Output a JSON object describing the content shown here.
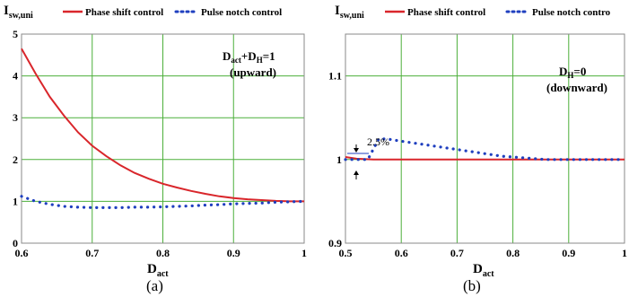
{
  "captions": {
    "a": "(a)",
    "b": "(b)"
  },
  "colors": {
    "phase_shift": "#d9262b",
    "pulse_notch": "#1f3fbf",
    "grid": "#4caf3a",
    "frame": "#8a8a8a",
    "bg": "#ffffff"
  },
  "chart_data": [
    {
      "type": "line",
      "panel": "a",
      "ylabel_main": "I",
      "ylabel_sub": "sw,uni",
      "xlabel_main": "D",
      "xlabel_sub": "act",
      "legend": {
        "phase": "Phase shift control",
        "pulse": "Pulse notch control",
        "placement": "top"
      },
      "annotation_line1": "D",
      "annotation_line1_sub1": "act",
      "annotation_line1_mid": "+D",
      "annotation_line1_sub2": "H",
      "annotation_line1_end": "=1",
      "annotation_line2": "(upward)",
      "xlim": [
        0.6,
        1.0
      ],
      "ylim": [
        0,
        5
      ],
      "xticks": [
        "0.6",
        "0.7",
        "0.8",
        "0.9",
        "1"
      ],
      "xtick_values": [
        0.6,
        0.7,
        0.8,
        0.9,
        1.0
      ],
      "yticks": [
        "0",
        "1",
        "2",
        "3",
        "4",
        "5"
      ],
      "ytick_values": [
        0,
        1,
        2,
        3,
        4,
        5
      ],
      "grid": true,
      "series": [
        {
          "name": "Phase shift control",
          "style": "solid",
          "x": [
            0.6,
            0.62,
            0.64,
            0.66,
            0.68,
            0.7,
            0.72,
            0.74,
            0.76,
            0.78,
            0.8,
            0.82,
            0.84,
            0.86,
            0.88,
            0.9,
            0.92,
            0.94,
            0.96,
            0.98,
            1.0
          ],
          "y": [
            4.65,
            4.05,
            3.5,
            3.05,
            2.65,
            2.33,
            2.08,
            1.86,
            1.68,
            1.54,
            1.42,
            1.33,
            1.25,
            1.18,
            1.12,
            1.08,
            1.05,
            1.03,
            1.01,
            1.0,
            1.0
          ]
        },
        {
          "name": "Pulse notch control",
          "style": "dotted",
          "x": [
            0.6,
            0.62,
            0.64,
            0.66,
            0.68,
            0.7,
            0.72,
            0.74,
            0.76,
            0.78,
            0.8,
            0.82,
            0.84,
            0.86,
            0.88,
            0.9,
            0.92,
            0.94,
            0.96,
            0.98,
            1.0
          ],
          "y": [
            1.12,
            1.0,
            0.93,
            0.88,
            0.86,
            0.85,
            0.85,
            0.85,
            0.86,
            0.86,
            0.87,
            0.88,
            0.89,
            0.91,
            0.92,
            0.94,
            0.95,
            0.96,
            0.98,
            0.99,
            1.0
          ]
        }
      ]
    },
    {
      "type": "line",
      "panel": "b",
      "ylabel_main": "I",
      "ylabel_sub": "sw,uni",
      "xlabel_main": "D",
      "xlabel_sub": "act",
      "legend": {
        "phase": "Phase shift control",
        "pulse": "Pulse notch contro",
        "placement": "top"
      },
      "annotation_line1": "D",
      "annotation_line1_sub": "H",
      "annotation_line1_end": "=0",
      "annotation_line2": "(downward)",
      "percent_label": "2.5%",
      "xlim": [
        0.5,
        1.0
      ],
      "ylim": [
        0.9,
        1.15
      ],
      "xticks": [
        "0.5",
        "0.6",
        "0.7",
        "0.8",
        "0.9",
        "1"
      ],
      "xtick_values": [
        0.5,
        0.6,
        0.7,
        0.8,
        0.9,
        1.0
      ],
      "yticks": [
        "0.9",
        "1",
        "1.1"
      ],
      "ytick_values": [
        0.9,
        1.0,
        1.1
      ],
      "grid": true,
      "series": [
        {
          "name": "Phase shift control",
          "style": "solid",
          "x": [
            0.5,
            0.52,
            0.55,
            0.6,
            0.65,
            0.7,
            0.75,
            0.8,
            0.85,
            0.9,
            0.95,
            1.0
          ],
          "y": [
            1.003,
            1.001,
            1.0,
            1.0,
            1.0,
            1.0,
            1.0,
            1.0,
            1.0,
            1.0,
            1.0,
            1.0
          ]
        },
        {
          "name": "Pulse notch control",
          "style": "dotted",
          "x": [
            0.5,
            0.52,
            0.54,
            0.56,
            0.58,
            0.6,
            0.62,
            0.64,
            0.66,
            0.68,
            0.7,
            0.72,
            0.74,
            0.76,
            0.78,
            0.8,
            0.82,
            0.84,
            0.86,
            0.88,
            0.9,
            0.92,
            0.94,
            0.96,
            0.98,
            1.0
          ],
          "y": [
            1.0,
            1.0,
            1.0,
            1.025,
            1.024,
            1.022,
            1.02,
            1.018,
            1.016,
            1.014,
            1.012,
            1.01,
            1.008,
            1.006,
            1.004,
            1.003,
            1.002,
            1.001,
            1.0,
            1.0,
            1.0,
            1.0,
            1.0,
            1.0,
            1.0,
            1.0
          ]
        }
      ]
    }
  ]
}
